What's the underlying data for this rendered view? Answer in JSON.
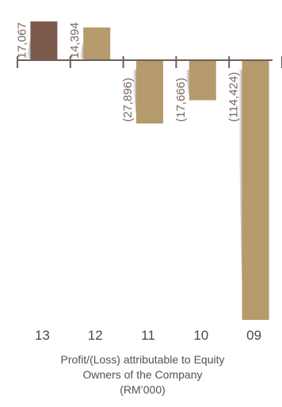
{
  "chart_data": {
    "type": "bar",
    "categories": [
      "13",
      "12",
      "11",
      "10",
      "09"
    ],
    "values": [
      17067,
      14394,
      -27896,
      -17666,
      -114424
    ],
    "value_labels": [
      "17,067",
      "14,394",
      "(27,896)",
      "(17,666)",
      "(114,424)"
    ],
    "ylim": [
      -114424,
      17067
    ],
    "grid": false,
    "title_lines": [
      "Profit/(Loss) attributable to Equity",
      "Owners of the Company",
      "(RM’000)"
    ],
    "colors": {
      "highlight_bar": "#7d5a4b",
      "bar": "#b59a6c",
      "axis": "#6e5f57",
      "label": "#7a6660"
    }
  }
}
